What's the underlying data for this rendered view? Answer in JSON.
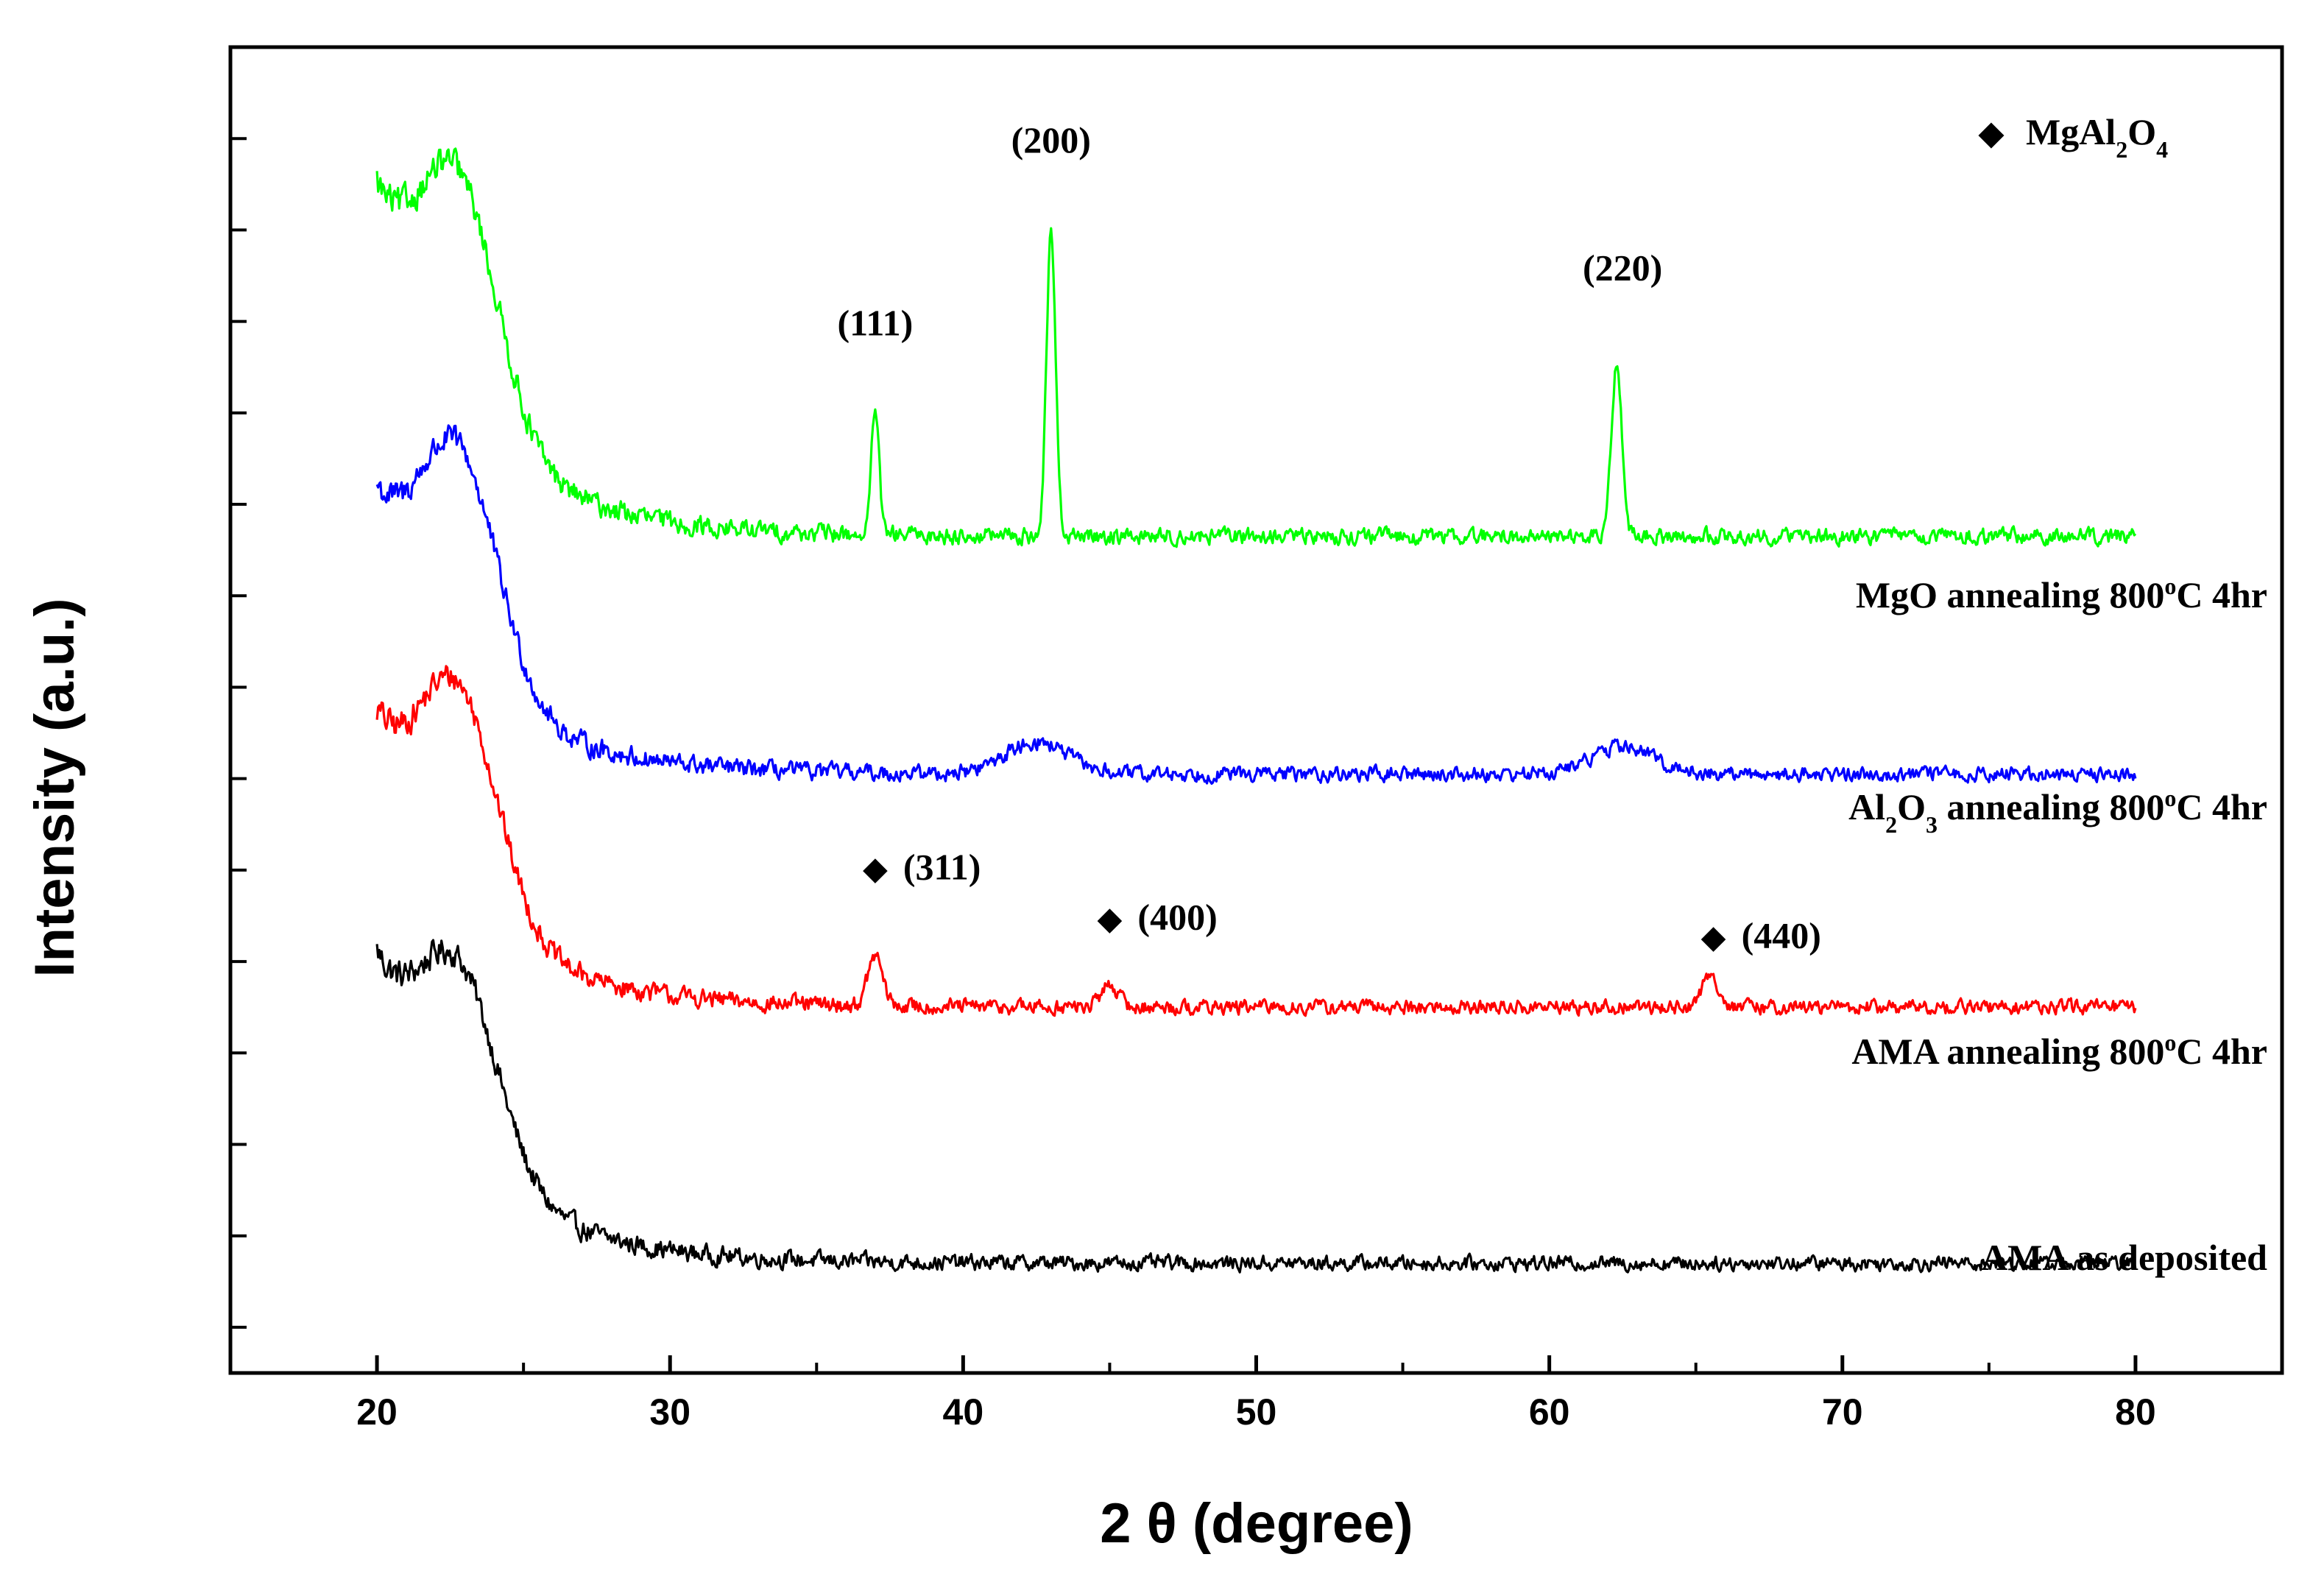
{
  "chart_data": {
    "type": "line",
    "xlabel": "2 θ (degree)",
    "ylabel": "Intensity (a.u.)",
    "xlim": [
      15,
      85
    ],
    "ylim": [
      0,
      14.5
    ],
    "x_ticks": [
      20,
      30,
      40,
      50,
      60,
      70,
      80
    ],
    "x_tick_labels": [
      "20",
      "30",
      "40",
      "50",
      "60",
      "70",
      "80"
    ],
    "y_minor_tick_step": 1,
    "y_tick_labels_shown": false,
    "legend": {
      "marker": "◆",
      "formula": {
        "base": "MgAl",
        "sub1": "2",
        "mid": "O",
        "sub2": "4"
      }
    },
    "series": [
      {
        "name": "AMA as deposited",
        "color": "#000000",
        "baseline": 1.2,
        "hump_height": 2.0,
        "decay_height": 3.2,
        "peaks": [],
        "noise": 0.12,
        "label": {
          "parts": [
            {
              "t": "AMA as deposited"
            }
          ]
        }
      },
      {
        "name": "AMA annealing 800°C 4hr",
        "color": "#ff0000",
        "baseline": 4.0,
        "hump_height": 2.3,
        "decay_height": 3.0,
        "peaks": [
          {
            "x": 37.0,
            "h": 0.55,
            "w": 0.35
          },
          {
            "x": 45.0,
            "h": 0.25,
            "w": 0.4
          },
          {
            "x": 65.5,
            "h": 0.35,
            "w": 0.4
          }
        ],
        "noise": 0.12,
        "label": {
          "parts": [
            {
              "t": "AMA annealing 800"
            },
            {
              "t": "o",
              "sup": true
            },
            {
              "t": "C 4hr"
            }
          ]
        }
      },
      {
        "name": "Al2O3 annealing 800°C 4hr",
        "color": "#0000ff",
        "baseline": 6.55,
        "hump_height": 2.4,
        "decay_height": 2.9,
        "peaks": [
          {
            "x": 42.5,
            "h": 0.35,
            "w": 1.5
          },
          {
            "x": 62.5,
            "h": 0.3,
            "w": 1.5
          }
        ],
        "noise": 0.12,
        "label": {
          "parts": [
            {
              "t": "Al"
            },
            {
              "t": "2",
              "sub": true
            },
            {
              "t": "O"
            },
            {
              "t": "3",
              "sub": true
            },
            {
              "t": " annealing 800"
            },
            {
              "t": "o",
              "sup": true
            },
            {
              "t": "C 4hr"
            }
          ]
        }
      },
      {
        "name": "MgO annealing 800°C 4hr",
        "color": "#00ff00",
        "baseline": 9.15,
        "hump_height": 2.5,
        "decay_height": 3.6,
        "peaks": [
          {
            "x": 37.0,
            "h": 1.4,
            "w": 0.18
          },
          {
            "x": 43.0,
            "h": 3.3,
            "w": 0.22
          },
          {
            "x": 62.3,
            "h": 1.9,
            "w": 0.25
          }
        ],
        "noise": 0.13,
        "label": {
          "parts": [
            {
              "t": "MgO annealing 800"
            },
            {
              "t": "o",
              "sup": true
            },
            {
              "t": "C 4hr"
            }
          ]
        }
      }
    ],
    "annotations": [
      {
        "text": "(111)",
        "x": 37.0,
        "y": 11.35,
        "marker": false
      },
      {
        "text": "(200)",
        "x": 43.0,
        "y": 13.35,
        "marker": false
      },
      {
        "text": "(220)",
        "x": 62.5,
        "y": 11.95,
        "marker": false
      },
      {
        "text": "(311)",
        "x": 37.0,
        "y": 5.4,
        "marker": true
      },
      {
        "text": "(400)",
        "x": 45.0,
        "y": 4.85,
        "marker": true
      },
      {
        "text": "(440)",
        "x": 65.6,
        "y": 4.65,
        "marker": true
      }
    ]
  }
}
